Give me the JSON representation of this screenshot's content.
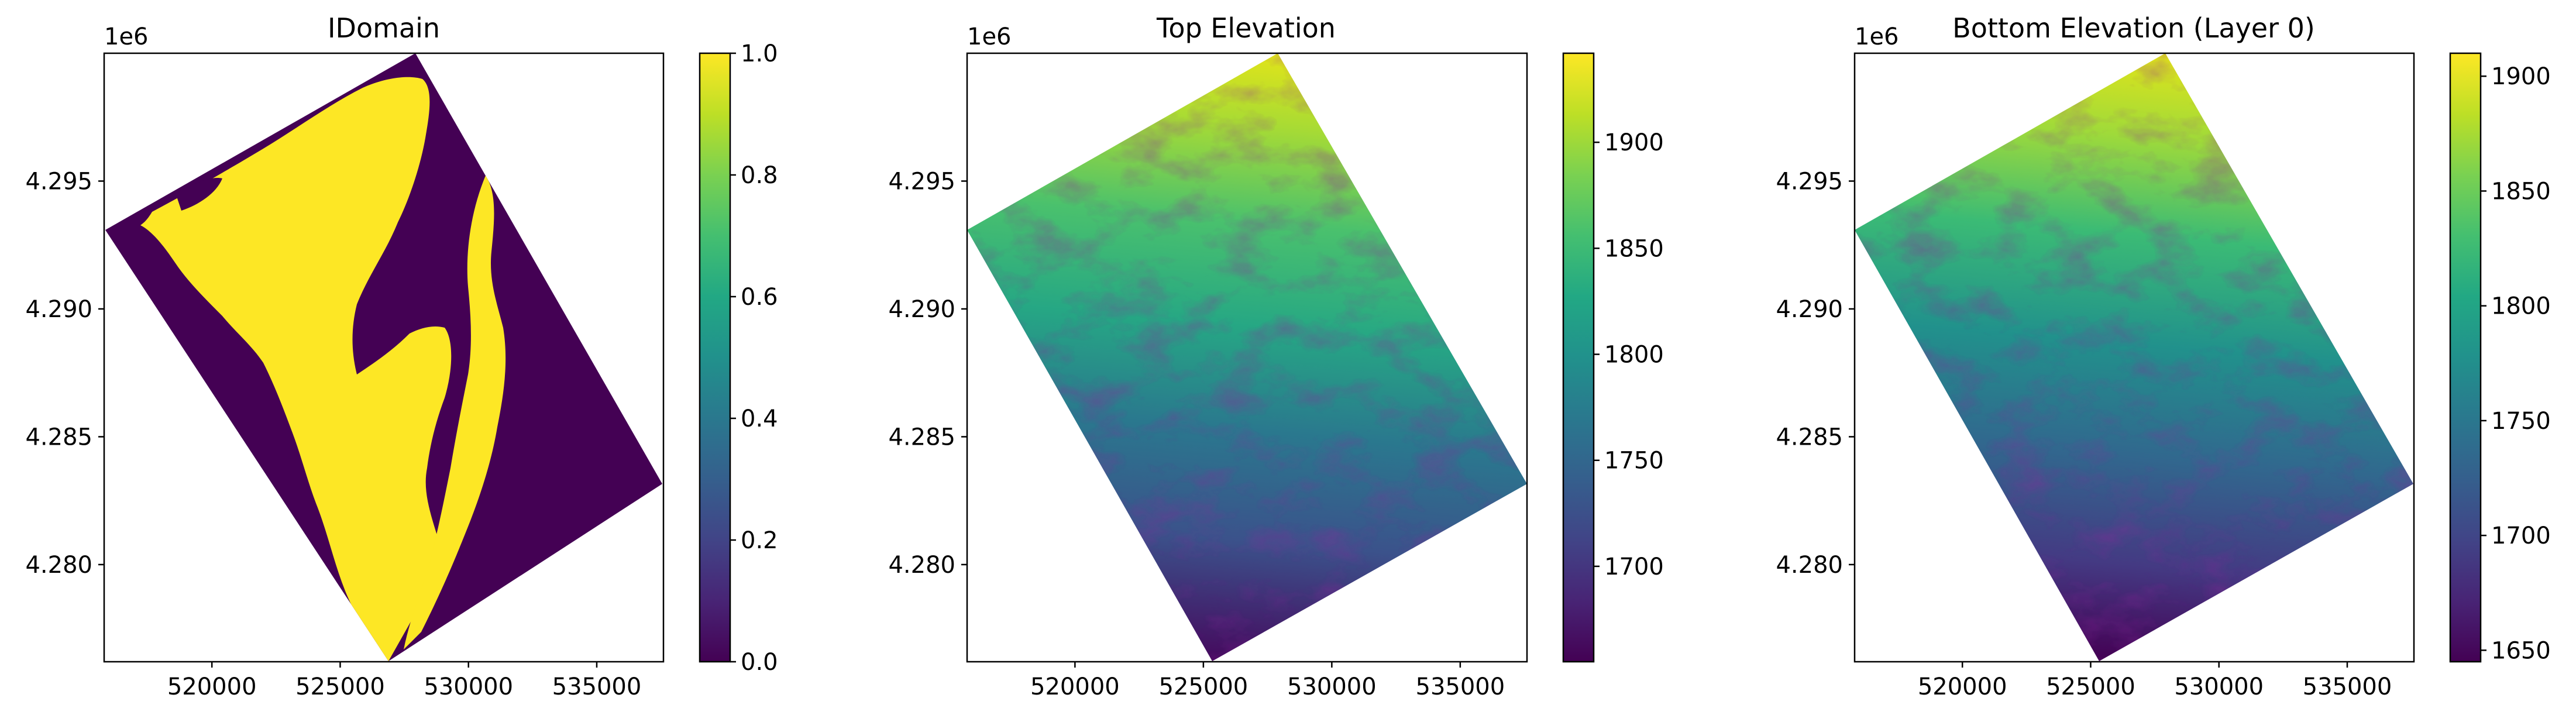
{
  "chart_data": [
    {
      "type": "heatmap",
      "title": "IDomain",
      "x_offset_text": "",
      "y_offset_text": "1e6",
      "xlim": [
        515800,
        537600
      ],
      "ylim": [
        4276200,
        4300000
      ],
      "xticks": [
        520000,
        525000,
        530000,
        535000
      ],
      "xtick_labels": [
        "520000",
        "525000",
        "530000",
        "535000"
      ],
      "yticks": [
        4280000,
        4285000,
        4290000,
        4295000
      ],
      "ytick_labels": [
        "4.280",
        "4.285",
        "4.290",
        "4.295"
      ],
      "colorbar": {
        "min": 0.0,
        "max": 1.0,
        "ticks": [
          0.0,
          0.2,
          0.4,
          0.6,
          0.8,
          1.0
        ],
        "tick_labels": [
          "0.0",
          "0.2",
          "0.4",
          "0.6",
          "0.8",
          "1.0"
        ]
      },
      "grid_corners": [
        [
          515800,
          4293000
        ],
        [
          527900,
          4299800
        ],
        [
          537400,
          4283200
        ],
        [
          525400,
          4276300
        ]
      ],
      "colormap": "viridis",
      "values_description": "binary active-cell domain (1 = active along river corridor, 0 = inactive)"
    },
    {
      "type": "heatmap",
      "title": "Top Elevation",
      "x_offset_text": "",
      "y_offset_text": "1e6",
      "xlim": [
        515800,
        537600
      ],
      "ylim": [
        4276200,
        4300000
      ],
      "xticks": [
        520000,
        525000,
        530000,
        535000
      ],
      "xtick_labels": [
        "520000",
        "525000",
        "530000",
        "535000"
      ],
      "yticks": [
        4280000,
        4285000,
        4290000,
        4295000
      ],
      "ytick_labels": [
        "4.280",
        "4.285",
        "4.290",
        "4.295"
      ],
      "colorbar": {
        "min": 1655,
        "max": 1942,
        "ticks": [
          1700,
          1750,
          1800,
          1850,
          1900
        ],
        "tick_labels": [
          "1700",
          "1750",
          "1800",
          "1850",
          "1900"
        ]
      },
      "grid_corners": [
        [
          515800,
          4293000
        ],
        [
          527900,
          4299800
        ],
        [
          537400,
          4283200
        ],
        [
          525400,
          4276300
        ]
      ],
      "colormap": "viridis"
    },
    {
      "type": "heatmap",
      "title": "Bottom Elevation (Layer 0)",
      "x_offset_text": "",
      "y_offset_text": "1e6",
      "xlim": [
        515800,
        537600
      ],
      "ylim": [
        4276200,
        4300000
      ],
      "xticks": [
        520000,
        525000,
        530000,
        535000
      ],
      "xtick_labels": [
        "520000",
        "525000",
        "530000",
        "535000"
      ],
      "yticks": [
        4280000,
        4285000,
        4290000,
        4295000
      ],
      "ytick_labels": [
        "4.280",
        "4.285",
        "4.290",
        "4.295"
      ],
      "colorbar": {
        "min": 1645,
        "max": 1910,
        "ticks": [
          1650,
          1700,
          1750,
          1800,
          1850,
          1900
        ],
        "tick_labels": [
          "1650",
          "1700",
          "1750",
          "1800",
          "1850",
          "1900"
        ]
      },
      "grid_corners": [
        [
          515800,
          4293000
        ],
        [
          527900,
          4299800
        ],
        [
          537400,
          4283200
        ],
        [
          525400,
          4276300
        ]
      ],
      "colormap": "viridis"
    }
  ]
}
